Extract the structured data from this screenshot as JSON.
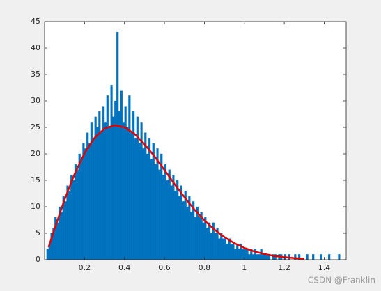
{
  "chart_data": {
    "type": "histogram",
    "bins": [
      0,
      0.01,
      0.02,
      0.03,
      0.04,
      0.05,
      0.06,
      0.07,
      0.08,
      0.09,
      0.1,
      0.11,
      0.12,
      0.13,
      0.14,
      0.15,
      0.16,
      0.17,
      0.18,
      0.19,
      0.2,
      0.21,
      0.22,
      0.23,
      0.24,
      0.25,
      0.26,
      0.27,
      0.28,
      0.29,
      0.3,
      0.31,
      0.32,
      0.33,
      0.34,
      0.35,
      0.36,
      0.37,
      0.38,
      0.39,
      0.4,
      0.41,
      0.42,
      0.43,
      0.44,
      0.45,
      0.46,
      0.47,
      0.48,
      0.49,
      0.5,
      0.51,
      0.52,
      0.53,
      0.54,
      0.55,
      0.56,
      0.57,
      0.58,
      0.59,
      0.6,
      0.61,
      0.62,
      0.63,
      0.64,
      0.65,
      0.66,
      0.67,
      0.68,
      0.69,
      0.7,
      0.71,
      0.72,
      0.73,
      0.74,
      0.75,
      0.76,
      0.77,
      0.78,
      0.79,
      0.8,
      0.81,
      0.82,
      0.83,
      0.84,
      0.85,
      0.86,
      0.87,
      0.88,
      0.89,
      0.9,
      0.91,
      0.92,
      0.93,
      0.94,
      0.95,
      0.96,
      0.97,
      0.98,
      0.99,
      1,
      1.01,
      1.02,
      1.03,
      1.04,
      1.05,
      1.06,
      1.07,
      1.08,
      1.09,
      1.1,
      1.11,
      1.12,
      1.13,
      1.14,
      1.15,
      1.16,
      1.17,
      1.18,
      1.19,
      1.2,
      1.21,
      1.22,
      1.23,
      1.24,
      1.25,
      1.26,
      1.27,
      1.28,
      1.29,
      1.3,
      1.31,
      1.32,
      1.33,
      1.34,
      1.35,
      1.36,
      1.37,
      1.38,
      1.39,
      1.4,
      1.41,
      1.42,
      1.43,
      1.44,
      1.45,
      1.46,
      1.47,
      1.48,
      1.49,
      1.5
    ],
    "counts": [
      0,
      2,
      3,
      5,
      6,
      8,
      7,
      10,
      9,
      12,
      11,
      14,
      13,
      16,
      15,
      18,
      17,
      20,
      19,
      22,
      21,
      24,
      22,
      26,
      23,
      27,
      25,
      28,
      24,
      29,
      26,
      31,
      25,
      33,
      27,
      30,
      43,
      28,
      32,
      26,
      29,
      25,
      31,
      24,
      28,
      23,
      27,
      22,
      26,
      21,
      24,
      20,
      23,
      19,
      22,
      18,
      21,
      17,
      20,
      16,
      18,
      15,
      17,
      14,
      16,
      13,
      15,
      12,
      14,
      11,
      13,
      10,
      12,
      9,
      11,
      8,
      10,
      8,
      9,
      7,
      8,
      6,
      7,
      5,
      7,
      5,
      6,
      4,
      5,
      4,
      4,
      3,
      4,
      3,
      3,
      2,
      3,
      2,
      3,
      2,
      2,
      2,
      1,
      2,
      1,
      2,
      1,
      1,
      2,
      1,
      1,
      1,
      1,
      0,
      1,
      1,
      0,
      1,
      1,
      0,
      1,
      0,
      1,
      0,
      0,
      1,
      0,
      1,
      0,
      0,
      0,
      1,
      0,
      0,
      1,
      0,
      0,
      0,
      1,
      0,
      0,
      0,
      1,
      0,
      0,
      0,
      0,
      1,
      0,
      0
    ],
    "color": "#0072bd",
    "fit": {
      "type": "line",
      "x": [
        0.02,
        0.05,
        0.1,
        0.15,
        0.2,
        0.25,
        0.3,
        0.35,
        0.4,
        0.45,
        0.5,
        0.55,
        0.6,
        0.65,
        0.7,
        0.75,
        0.8,
        0.85,
        0.9,
        0.95,
        1,
        1.05,
        1.1,
        1.15,
        1.2,
        1.25,
        1.3
      ],
      "values": [
        2.35,
        5.84,
        11.34,
        16.18,
        20.13,
        23.02,
        24.77,
        25.39,
        25.02,
        23.77,
        21.85,
        19.54,
        16.95,
        14.33,
        11.82,
        9.49,
        7.44,
        5.7,
        4.27,
        3.12,
        2.23,
        1.56,
        1.07,
        0.71,
        0.47,
        0.3,
        0.19
      ],
      "color": "#e00000"
    },
    "xlim": [
      0,
      1.51
    ],
    "ylim": [
      0,
      45
    ],
    "xticks": [
      0.2,
      0.4,
      0.6,
      0.8,
      1,
      1.2,
      1.4
    ],
    "yticks": [
      0,
      5,
      10,
      15,
      20,
      25,
      30,
      35,
      40,
      45
    ]
  },
  "watermark": "CSDN @Franklin"
}
